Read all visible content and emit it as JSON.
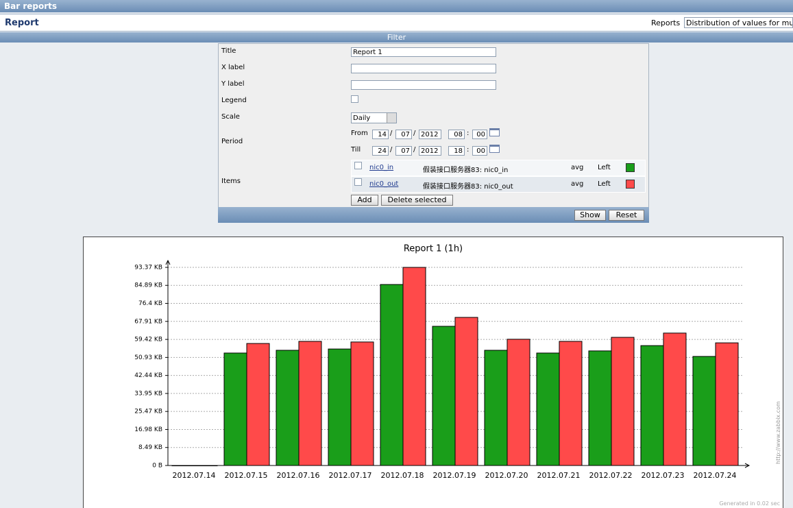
{
  "header": {
    "title": "Bar reports"
  },
  "report_bar": {
    "title": "Report",
    "reports_label": "Reports",
    "reports_value": "Distribution of values for mu"
  },
  "filter": {
    "toggle": "Filter",
    "labels": [
      "Title",
      "X label",
      "Y label",
      "Legend",
      "Scale",
      "Period",
      "Items"
    ],
    "title_value": "Report 1",
    "scale_value": "Daily",
    "date_sep": "/",
    "time_sep": ":",
    "from": {
      "label": "From",
      "day": "14",
      "month": "07",
      "year": "2012",
      "hour": "08",
      "minute": "00"
    },
    "till": {
      "label": "Till",
      "day": "24",
      "month": "07",
      "year": "2012",
      "hour": "18",
      "minute": "00"
    },
    "items": [
      {
        "key": "nic0_in",
        "name": "假装接口服务器83: nic0_in",
        "func": "avg",
        "axis": "Left",
        "color": "#1a9e1a"
      },
      {
        "key": "nic0_out",
        "name": "假装接口服务器83: nic0_out",
        "func": "avg",
        "axis": "Left",
        "color": "#ff4a4a"
      }
    ],
    "buttons": [
      "Add",
      "Delete selected"
    ],
    "footer_buttons": [
      "Show",
      "Reset"
    ]
  },
  "chart_data": {
    "type": "bar",
    "title": "Report 1 (1h)",
    "categories": [
      "2012.07.14",
      "2012.07.15",
      "2012.07.16",
      "2012.07.17",
      "2012.07.18",
      "2012.07.19",
      "2012.07.20",
      "2012.07.21",
      "2012.07.22",
      "2012.07.23",
      "2012.07.24"
    ],
    "series": [
      {
        "color": "#1a9e1a",
        "values": [
          0,
          53.0,
          54.3,
          54.9,
          85.3,
          65.6,
          54.3,
          53.0,
          54.0,
          56.5,
          51.4
        ]
      },
      {
        "color": "#ff4a4a",
        "values": [
          0,
          57.5,
          58.5,
          58.2,
          93.37,
          69.8,
          59.5,
          58.5,
          60.4,
          62.4,
          57.8
        ]
      }
    ],
    "ylim": [
      0,
      93.37
    ],
    "yticks": [
      {
        "value": 0,
        "label": "0 B"
      },
      {
        "value": 8.49,
        "label": "8.49 KB"
      },
      {
        "value": 16.98,
        "label": "16.98 KB"
      },
      {
        "value": 25.47,
        "label": "25.47 KB"
      },
      {
        "value": 33.95,
        "label": "33.95 KB"
      },
      {
        "value": 42.44,
        "label": "42.44 KB"
      },
      {
        "value": 50.93,
        "label": "50.93 KB"
      },
      {
        "value": 59.42,
        "label": "59.42 KB"
      },
      {
        "value": 67.91,
        "label": "67.91 KB"
      },
      {
        "value": 76.4,
        "label": "76.4 KB"
      },
      {
        "value": 84.89,
        "label": "84.89 KB"
      },
      {
        "value": 93.37,
        "label": "93.37 KB"
      }
    ],
    "grid": true
  },
  "footer": {
    "url": "http://www.zabbix.com",
    "generated": "Generated in 0.02 sec"
  }
}
